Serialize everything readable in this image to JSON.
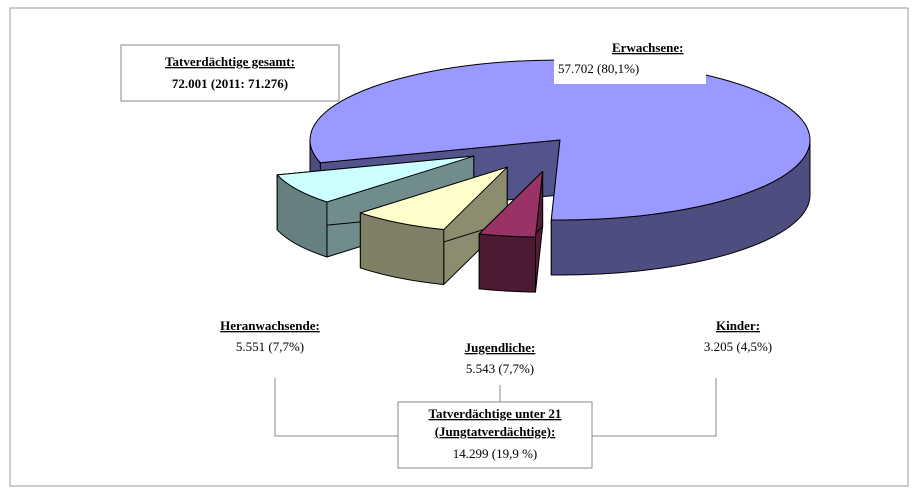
{
  "chart_data": {
    "type": "pie",
    "categories": [
      "Erwachsene:",
      "Heranwachsende:",
      "Jugendliche:",
      "Kinder:"
    ],
    "values": [
      57702,
      5551,
      5543,
      3205
    ],
    "value_labels": [
      "57.702 (80,1%)",
      "5.551 (7,7%)",
      "5.543 (7,7%)",
      "3.205 (4,5%)"
    ],
    "colors": [
      "#9999ff",
      "#ccffff",
      "#ffffcc",
      "#993366"
    ],
    "annotations": [
      {
        "title": "Tatverdächtige gesamt:",
        "text": "72.001 (2011: 71.276)"
      },
      {
        "title": "Tatverdächtige unter 21",
        "title2": "(Jungtatverdächtige):",
        "text": "14.299 (19,9 %)"
      }
    ]
  }
}
